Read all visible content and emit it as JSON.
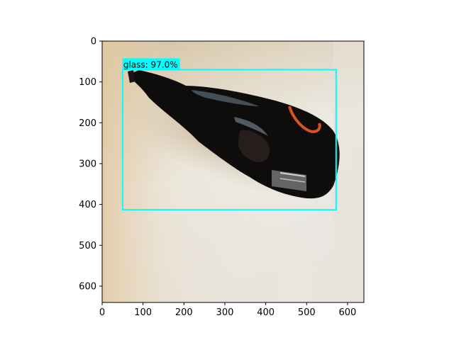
{
  "figure": {
    "image_description_colors": {
      "background_warm": "#d9c9a8",
      "background_light": "#eeeeea",
      "bottle_dark": "#0f0c0c",
      "bottle_highlight": "#5b6b7a",
      "label_orange": "#d9531f"
    },
    "axes": {
      "x_ticks": [
        "0",
        "100",
        "200",
        "300",
        "400",
        "500",
        "600"
      ],
      "y_ticks": [
        "0",
        "100",
        "200",
        "300",
        "400",
        "500",
        "600"
      ],
      "x_range": [
        0,
        640
      ],
      "y_range": [
        0,
        640
      ]
    },
    "detection": {
      "label": "glass: 97.0%",
      "box_color": "#00ffff",
      "box": {
        "x_min": 50,
        "y_min": 70,
        "x_max": 572,
        "y_max": 413
      }
    }
  }
}
